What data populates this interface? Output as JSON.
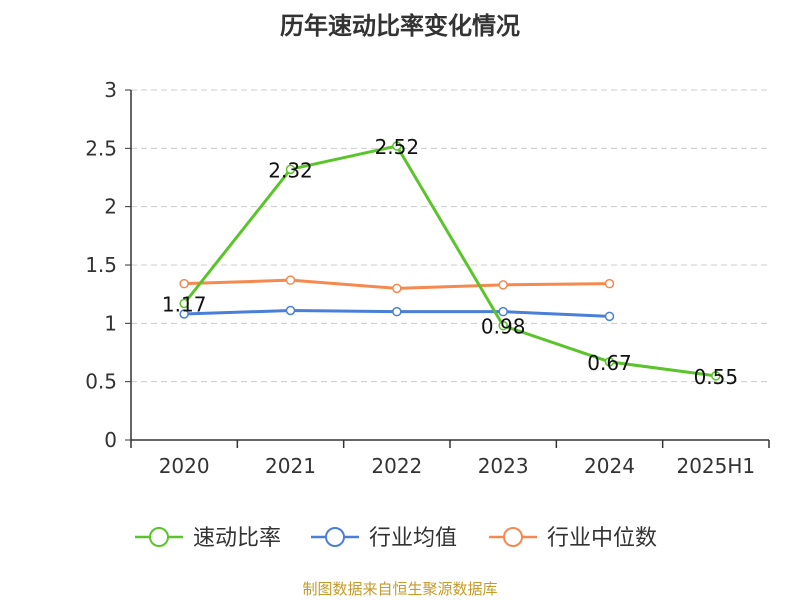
{
  "colors": {
    "axis": "#333333",
    "grid": "#cccccc",
    "text": "#333333",
    "source": "#c49a2a"
  },
  "chart_data": {
    "type": "line",
    "title": "历年速动比率变化情况",
    "categories": [
      "2020",
      "2021",
      "2022",
      "2023",
      "2024",
      "2025H1"
    ],
    "ylim": [
      0,
      3
    ],
    "yticks": [
      0,
      0.5,
      1,
      1.5,
      2,
      2.5,
      3
    ],
    "grid": true,
    "legend_position": "bottom",
    "series": [
      {
        "name": "速动比率",
        "color": "#5bc42b",
        "values": [
          1.17,
          2.32,
          2.52,
          0.98,
          0.67,
          0.55
        ],
        "labels": [
          "1.17",
          "2.32",
          "2.52",
          "0.98",
          "0.67",
          "0.55"
        ]
      },
      {
        "name": "行业均值",
        "color": "#4a7fd8",
        "values": [
          1.08,
          1.11,
          1.1,
          1.1,
          1.06,
          null
        ]
      },
      {
        "name": "行业中位数",
        "color": "#f5894f",
        "values": [
          1.34,
          1.37,
          1.3,
          1.33,
          1.34,
          null
        ]
      }
    ]
  },
  "source": "制图数据来自恒生聚源数据库"
}
